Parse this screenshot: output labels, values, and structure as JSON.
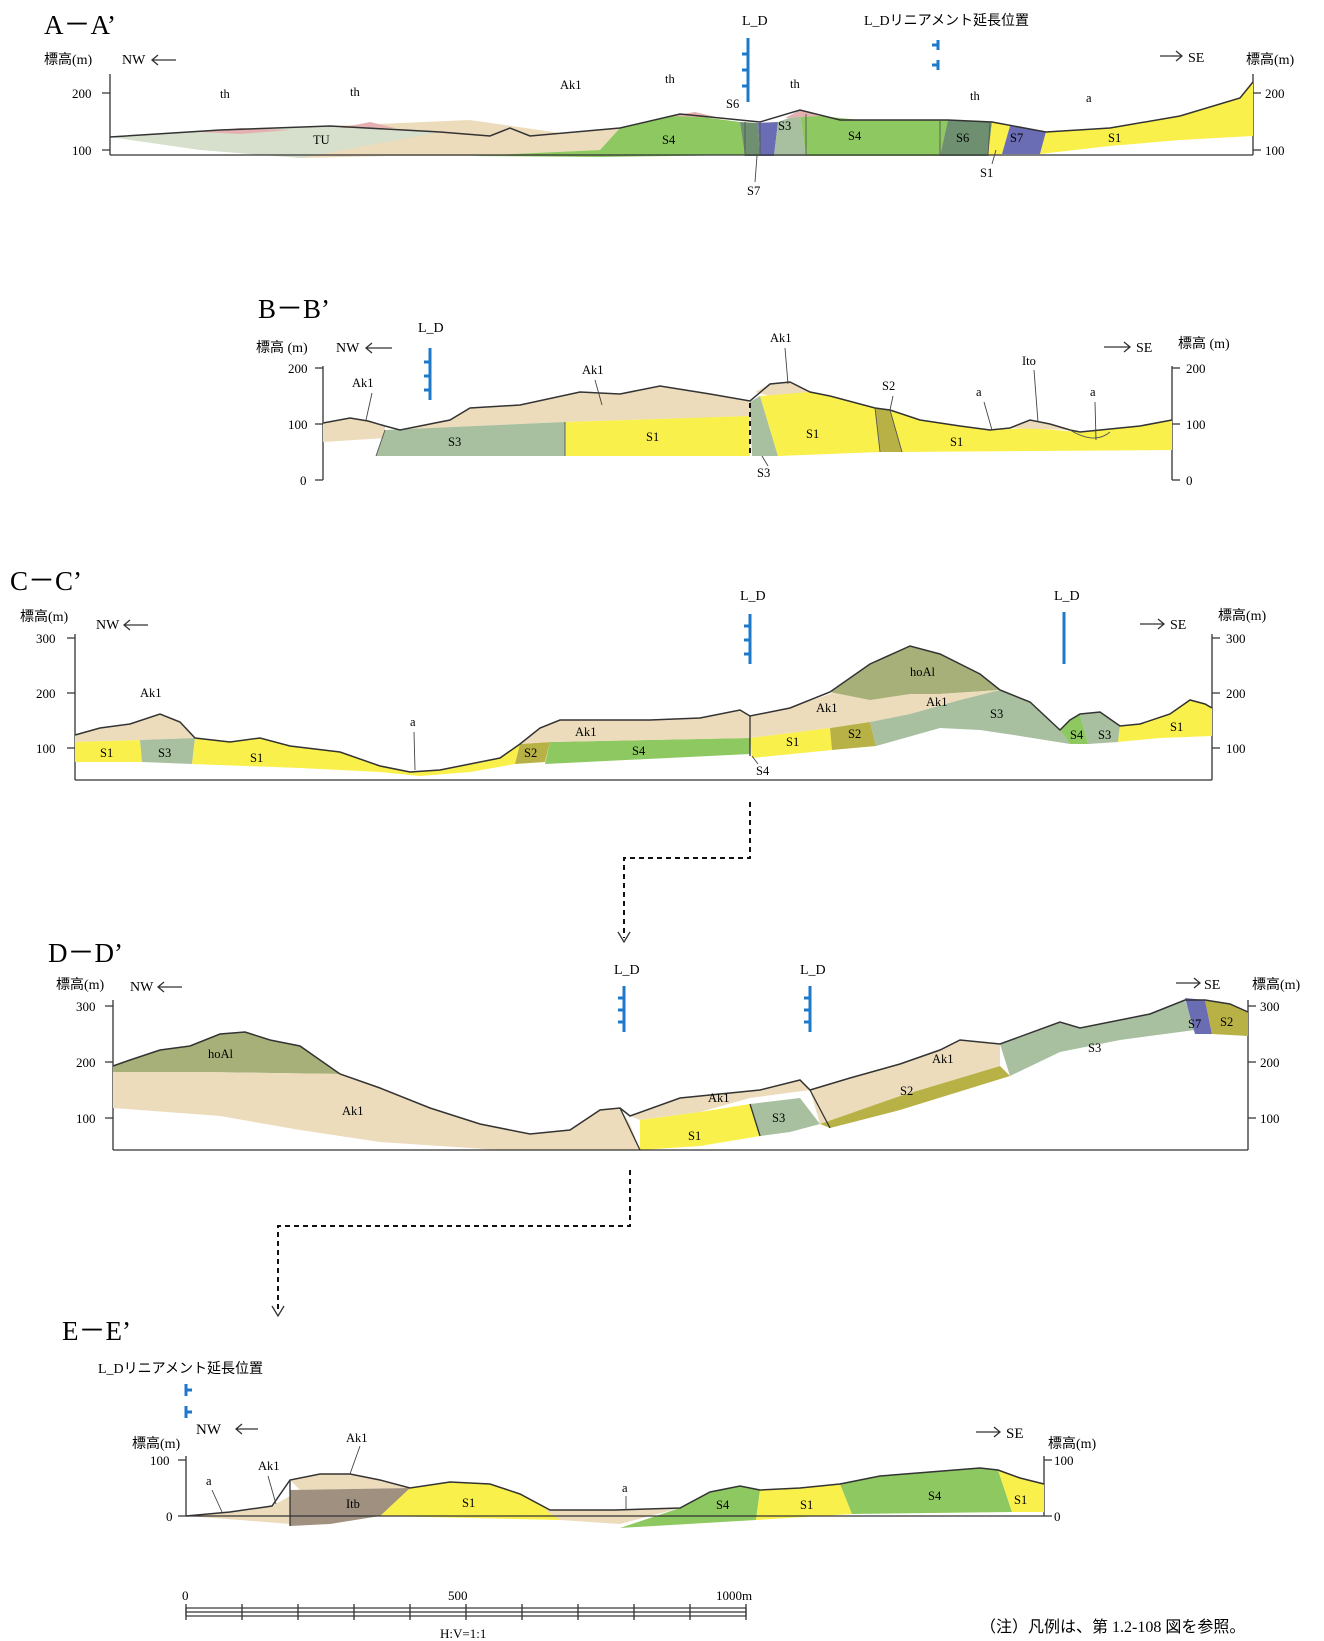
{
  "sections": [
    {
      "id": "A",
      "title": "A－A’",
      "nw": "NW",
      "se": "SE",
      "elev_left": "標高(m)",
      "elev_right": "標高(m)",
      "ticks": [
        "200",
        "100"
      ],
      "markers": [
        "L_D",
        "L_Dリニアメント延長位置"
      ],
      "units": [
        "th",
        "th",
        "TU",
        "Ak1",
        "th",
        "th",
        "S6",
        "S3",
        "S4",
        "S4",
        "th",
        "S6",
        "S7",
        "a",
        "S1",
        "S7",
        "S1"
      ]
    },
    {
      "id": "B",
      "title": "B－B’",
      "nw": "NW",
      "se": "SE",
      "elev_left": "標高 (m)",
      "elev_right": "標高 (m)",
      "ticks": [
        "200",
        "100",
        "0"
      ],
      "markers": [
        "L_D"
      ],
      "units": [
        "Ak1",
        "Ak1",
        "Ak1",
        "S3",
        "S1",
        "S1",
        "S3",
        "S2",
        "Ito",
        "a",
        "a",
        "S1"
      ]
    },
    {
      "id": "C",
      "title": "C－C’",
      "nw": "NW",
      "se": "SE",
      "elev_left": "標高(m)",
      "elev_right": "標高(m)",
      "ticks": [
        "300",
        "200",
        "100"
      ],
      "markers": [
        "L_D",
        "L_D"
      ],
      "units": [
        "Ak1",
        "S1",
        "S3",
        "S1",
        "a",
        "S2",
        "Ak1",
        "S4",
        "S4",
        "hoAl",
        "Ak1",
        "Ak1",
        "S1",
        "S2",
        "S3",
        "S4",
        "S3",
        "S1"
      ]
    },
    {
      "id": "D",
      "title": "D－D’",
      "nw": "NW",
      "se": "SE",
      "elev_left": "標高(m)",
      "elev_right": "標高(m)",
      "ticks": [
        "300",
        "200",
        "100"
      ],
      "markers": [
        "L_D",
        "L_D"
      ],
      "units": [
        "hoAl",
        "Ak1",
        "Ak1",
        "S1",
        "S3",
        "Ak1",
        "S2",
        "S3",
        "S7",
        "S2"
      ]
    },
    {
      "id": "E",
      "title": "E－E’",
      "nw": "NW",
      "se": "SE",
      "elev_left": "標高(m)",
      "elev_right": "標高(m)",
      "ticks": [
        "100",
        "0"
      ],
      "markers": [
        "L_Dリニアメント延長位置"
      ],
      "units": [
        "Ak1",
        "a",
        "Ak1",
        "Itb",
        "S1",
        "a",
        "S4",
        "S1",
        "S4",
        "S1"
      ]
    }
  ],
  "scale": {
    "labels": [
      "0",
      "500",
      "1000m"
    ],
    "ratio": "H:V=1:1"
  },
  "note": "（注）凡例は、第 1.2-108 図を参照。",
  "colors": {
    "Ak1": "#ecdcbc",
    "S1": "#faf04c",
    "S2": "#b8b246",
    "S3": "#a8c0a0",
    "S4": "#8ec860",
    "S6": "#6e9070",
    "S7": "#6a6cb4",
    "TU": "#d6e0cc",
    "th": "#e4b0b0",
    "hoAl": "#a8b07a",
    "Itb": "#a09080",
    "marker": "#1f78c8"
  }
}
